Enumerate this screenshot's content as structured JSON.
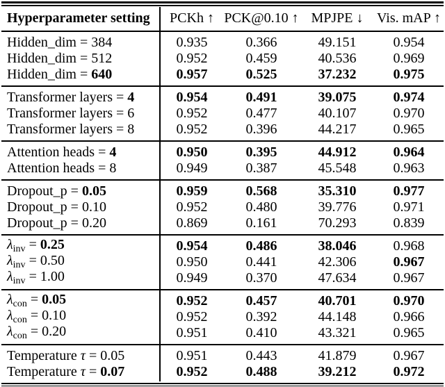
{
  "colors": {
    "text": "#000000",
    "background": "#ffffff",
    "rule": "#000000"
  },
  "header": {
    "setting_label": "Hyperparameter setting",
    "metric_labels": [
      "PCKh ↑",
      "PCK@0.10 ↑",
      "MPJPE ↓",
      "Vis. mAP ↑"
    ]
  },
  "sections": [
    {
      "name": "hidden-dim",
      "rows": [
        {
          "label": [
            {
              "text": "Hidden_dim = "
            },
            {
              "text": "384"
            }
          ],
          "values": [
            "0.935",
            "0.366",
            "49.151",
            "0.954"
          ],
          "bold_values": [
            false,
            false,
            false,
            false
          ]
        },
        {
          "label": [
            {
              "text": "Hidden_dim = "
            },
            {
              "text": "512"
            }
          ],
          "values": [
            "0.952",
            "0.459",
            "40.536",
            "0.969"
          ],
          "bold_values": [
            false,
            false,
            false,
            false
          ]
        },
        {
          "label": [
            {
              "text": "Hidden_dim = "
            },
            {
              "text": "640",
              "bold": true
            }
          ],
          "values": [
            "0.957",
            "0.525",
            "37.232",
            "0.975"
          ],
          "bold_values": [
            true,
            true,
            true,
            true
          ]
        }
      ]
    },
    {
      "name": "transformer-layers",
      "rows": [
        {
          "label": [
            {
              "text": "Transformer layers = "
            },
            {
              "text": "4",
              "bold": true
            }
          ],
          "values": [
            "0.954",
            "0.491",
            "39.075",
            "0.974"
          ],
          "bold_values": [
            true,
            true,
            true,
            true
          ]
        },
        {
          "label": [
            {
              "text": "Transformer layers = "
            },
            {
              "text": "6"
            }
          ],
          "values": [
            "0.952",
            "0.477",
            "40.107",
            "0.970"
          ],
          "bold_values": [
            false,
            false,
            false,
            false
          ]
        },
        {
          "label": [
            {
              "text": "Transformer layers = "
            },
            {
              "text": "8"
            }
          ],
          "values": [
            "0.952",
            "0.396",
            "44.217",
            "0.965"
          ],
          "bold_values": [
            false,
            false,
            false,
            false
          ]
        }
      ]
    },
    {
      "name": "attention-heads",
      "rows": [
        {
          "label": [
            {
              "text": "Attention heads = "
            },
            {
              "text": "4",
              "bold": true
            }
          ],
          "values": [
            "0.950",
            "0.395",
            "44.912",
            "0.964"
          ],
          "bold_values": [
            true,
            true,
            true,
            true
          ]
        },
        {
          "label": [
            {
              "text": "Attention heads = "
            },
            {
              "text": "8"
            }
          ],
          "values": [
            "0.949",
            "0.387",
            "45.548",
            "0.963"
          ],
          "bold_values": [
            false,
            false,
            false,
            false
          ]
        }
      ]
    },
    {
      "name": "dropout-p",
      "rows": [
        {
          "label": [
            {
              "text": "Dropout_p = "
            },
            {
              "text": "0.05",
              "bold": true
            }
          ],
          "values": [
            "0.959",
            "0.568",
            "35.310",
            "0.977"
          ],
          "bold_values": [
            true,
            true,
            true,
            true
          ]
        },
        {
          "label": [
            {
              "text": "Dropout_p = "
            },
            {
              "text": "0.10"
            }
          ],
          "values": [
            "0.952",
            "0.480",
            "39.776",
            "0.971"
          ],
          "bold_values": [
            false,
            false,
            false,
            false
          ]
        },
        {
          "label": [
            {
              "text": "Dropout_p = "
            },
            {
              "text": "0.20"
            }
          ],
          "values": [
            "0.869",
            "0.161",
            "70.293",
            "0.839"
          ],
          "bold_values": [
            false,
            false,
            false,
            false
          ]
        }
      ]
    },
    {
      "name": "lambda-inv",
      "rows": [
        {
          "label": [
            {
              "text": "λ",
              "italic": true
            },
            {
              "text": "inv",
              "sub": true
            },
            {
              "text": " = "
            },
            {
              "text": "0.25",
              "bold": true
            }
          ],
          "values": [
            "0.954",
            "0.486",
            "38.046",
            "0.968"
          ],
          "bold_values": [
            true,
            true,
            true,
            false
          ]
        },
        {
          "label": [
            {
              "text": "λ",
              "italic": true
            },
            {
              "text": "inv",
              "sub": true
            },
            {
              "text": " = "
            },
            {
              "text": "0.50"
            }
          ],
          "values": [
            "0.950",
            "0.441",
            "42.306",
            "0.967"
          ],
          "bold_values": [
            false,
            false,
            false,
            true
          ]
        },
        {
          "label": [
            {
              "text": "λ",
              "italic": true
            },
            {
              "text": "inv",
              "sub": true
            },
            {
              "text": " = "
            },
            {
              "text": "1.00"
            }
          ],
          "values": [
            "0.949",
            "0.370",
            "47.634",
            "0.967"
          ],
          "bold_values": [
            false,
            false,
            false,
            false
          ]
        }
      ]
    },
    {
      "name": "lambda-con",
      "rows": [
        {
          "label": [
            {
              "text": "λ",
              "italic": true
            },
            {
              "text": "con",
              "sub": true
            },
            {
              "text": " = "
            },
            {
              "text": "0.05",
              "bold": true
            }
          ],
          "values": [
            "0.952",
            "0.457",
            "40.701",
            "0.970"
          ],
          "bold_values": [
            true,
            true,
            true,
            true
          ]
        },
        {
          "label": [
            {
              "text": "λ",
              "italic": true
            },
            {
              "text": "con",
              "sub": true
            },
            {
              "text": " = "
            },
            {
              "text": "0.10"
            }
          ],
          "values": [
            "0.952",
            "0.392",
            "44.148",
            "0.966"
          ],
          "bold_values": [
            false,
            false,
            false,
            false
          ]
        },
        {
          "label": [
            {
              "text": "λ",
              "italic": true
            },
            {
              "text": "con",
              "sub": true
            },
            {
              "text": " = "
            },
            {
              "text": "0.20"
            }
          ],
          "values": [
            "0.951",
            "0.410",
            "43.321",
            "0.965"
          ],
          "bold_values": [
            false,
            false,
            false,
            false
          ]
        }
      ]
    },
    {
      "name": "temperature",
      "rows": [
        {
          "label": [
            {
              "text": "Temperature "
            },
            {
              "text": "τ",
              "italic": true
            },
            {
              "text": " = "
            },
            {
              "text": "0.05"
            }
          ],
          "values": [
            "0.951",
            "0.443",
            "41.879",
            "0.967"
          ],
          "bold_values": [
            false,
            false,
            false,
            false
          ]
        },
        {
          "label": [
            {
              "text": "Temperature "
            },
            {
              "text": "τ",
              "italic": true
            },
            {
              "text": " = "
            },
            {
              "text": "0.07",
              "bold": true
            }
          ],
          "values": [
            "0.952",
            "0.488",
            "39.212",
            "0.972"
          ],
          "bold_values": [
            true,
            true,
            true,
            true
          ]
        }
      ]
    }
  ]
}
